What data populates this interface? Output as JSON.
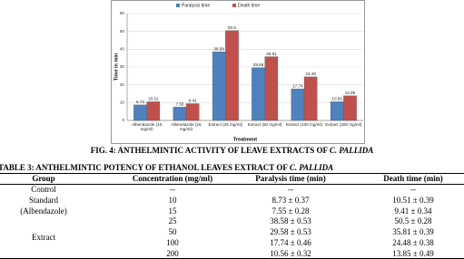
{
  "chart_data": {
    "type": "bar",
    "categories": [
      "Albendazole (10 mg/ml)",
      "Albendazole (15 mg/ml)",
      "Extract (25 mg/ml)",
      "Extract (50 mg/ml)",
      "Extract (100 mg/ml)",
      "Extract (200 mg/ml)"
    ],
    "series": [
      {
        "name": "Paralysis time",
        "color": "#4f81bd",
        "values": [
          8.73,
          7.55,
          38.58,
          29.58,
          17.74,
          10.56
        ]
      },
      {
        "name": "Death time",
        "color": "#c0504d",
        "values": [
          10.51,
          9.41,
          50.5,
          35.81,
          24.48,
          13.85
        ]
      }
    ],
    "y_label": "Time in min",
    "x_label": "Treatment",
    "ylim": [
      0,
      60
    ],
    "yticks": [
      0,
      10,
      20,
      30,
      40,
      50,
      60
    ],
    "grid": true,
    "legend": "top"
  },
  "figure_caption": {
    "text": "FIG. 4: ANTHELMINTIC ACTIVITY OF LEAVE EXTRACTS OF",
    "species": "C. PALLIDA"
  },
  "table": {
    "title": "TABLE 3: ANTHELMINTIC POTENCY OF ETHANOL LEAVES EXTRACT OF",
    "species": "C. PALLIDA",
    "columns": [
      "Group",
      "Concentration (mg/ml)",
      "Paralysis time (min)",
      "Death time (min)"
    ],
    "groups": [
      {
        "lines": [
          "Control"
        ],
        "rows": [
          [
            "--",
            "--",
            "--"
          ]
        ]
      },
      {
        "lines": [
          "Standard",
          "(Albendazole)"
        ],
        "rows": [
          [
            "10",
            "8.73 ± 0.37",
            "10.51 ± 0.39"
          ],
          [
            "15",
            "7.55 ± 0.28",
            "9.41 ± 0.34"
          ]
        ]
      },
      {
        "lines": [
          "Extract"
        ],
        "rows": [
          [
            "25",
            "38.58 ± 0.53",
            "50.5 ± 0.28"
          ],
          [
            "50",
            "29.58 ± 0.53",
            "35.81 ± 0.39"
          ],
          [
            "100",
            "17.74 ± 0.46",
            "24.48 ± 0.38"
          ],
          [
            "200",
            "10.56 ± 0.32",
            "13.85 ± 0.49"
          ]
        ]
      }
    ]
  }
}
